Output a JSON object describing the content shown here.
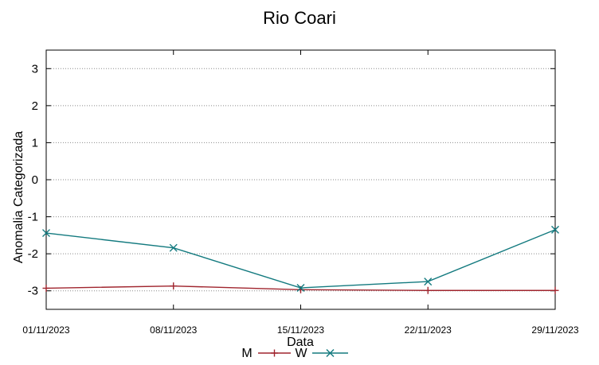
{
  "chart_data": {
    "type": "line",
    "title": "Rio Coari",
    "xlabel": "Data",
    "ylabel": "Anomalia Categorizada",
    "categories": [
      "01/11/2023",
      "08/11/2023",
      "15/11/2023",
      "22/11/2023",
      "29/11/2023"
    ],
    "ylim": [
      -3.5,
      3.5
    ],
    "yticks": [
      3,
      2,
      1,
      0,
      -1,
      -2,
      -3
    ],
    "grid": true,
    "legend_position": "bottom-center",
    "series": [
      {
        "name": "M",
        "color": "#a0252e",
        "marker": "plus",
        "values": [
          -2.93,
          -2.87,
          -2.97,
          -2.99,
          -2.99
        ]
      },
      {
        "name": "W",
        "color": "#137a7f",
        "marker": "cross",
        "values": [
          -1.44,
          -1.84,
          -2.92,
          -2.75,
          -1.35
        ]
      }
    ]
  }
}
